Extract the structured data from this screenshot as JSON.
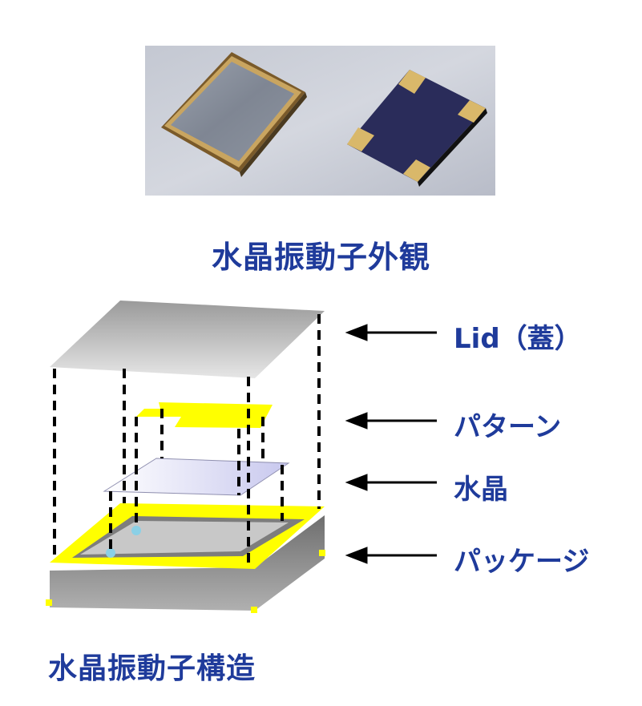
{
  "photo_caption": "水晶振動子外観",
  "structure_caption": "水晶振動子構造",
  "layers": [
    {
      "id": "lid",
      "label": "Lid（蓋）"
    },
    {
      "id": "pattern",
      "label": "パターン"
    },
    {
      "id": "crystal",
      "label": "水晶"
    },
    {
      "id": "package",
      "label": "パッケージ"
    }
  ],
  "colors": {
    "caption": "#1f3b9b",
    "lid": "#b8b8b8",
    "pattern": "#ffff00",
    "crystal": "#d8d8f2",
    "package_frame": "#ffff00",
    "package_body": "#8a8a8a",
    "arrow": "#000000"
  },
  "icons": [
    "arrow-left-icon"
  ]
}
